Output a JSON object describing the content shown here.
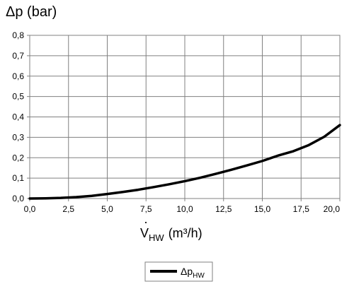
{
  "chart_data": {
    "type": "line",
    "ylabel": "Δp (bar)",
    "xlabel_main": "V",
    "xlabel_sub": "HW",
    "xlabel_unit": "(m³/h)",
    "xlim": [
      0,
      20
    ],
    "ylim": [
      0,
      0.8
    ],
    "x_ticks": [
      "0,0",
      "2,5",
      "5,0",
      "7,5",
      "10,0",
      "12,5",
      "15,0",
      "17,5",
      "20,0"
    ],
    "y_ticks": [
      "0,0",
      "0,1",
      "0,2",
      "0,3",
      "0,4",
      "0,5",
      "0,6",
      "0,7",
      "0,8"
    ],
    "grid": true,
    "legend_position": "bottom-center",
    "series": [
      {
        "name_main": "Δp",
        "name_sub": "HW",
        "color": "#000000",
        "x": [
          0,
          1,
          2,
          3,
          4,
          5,
          6,
          7,
          8,
          9,
          10,
          11,
          12,
          13,
          14,
          15,
          16,
          17,
          18,
          19,
          20
        ],
        "y": [
          0,
          0.001,
          0.003,
          0.007,
          0.013,
          0.022,
          0.032,
          0.043,
          0.056,
          0.07,
          0.085,
          0.102,
          0.121,
          0.141,
          0.162,
          0.184,
          0.21,
          0.232,
          0.262,
          0.303,
          0.36
        ]
      }
    ]
  }
}
